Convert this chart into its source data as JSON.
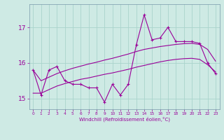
{
  "xlabel": "Windchill (Refroidissement éolien,°C)",
  "background_color": "#ceeae4",
  "grid_color": "#aad4cc",
  "line_color": "#990099",
  "x_ticks": [
    0,
    1,
    2,
    3,
    4,
    5,
    6,
    7,
    8,
    9,
    10,
    11,
    12,
    13,
    14,
    15,
    16,
    17,
    18,
    19,
    20,
    21,
    22,
    23
  ],
  "ylim": [
    14.7,
    17.65
  ],
  "yticks": [
    15,
    16,
    17
  ],
  "series_main": [
    15.8,
    15.1,
    15.8,
    15.9,
    15.5,
    15.4,
    15.4,
    15.3,
    15.3,
    14.9,
    15.4,
    15.1,
    15.4,
    16.5,
    17.35,
    16.65,
    16.7,
    17.0,
    16.6,
    16.6,
    16.6,
    16.55,
    16.0,
    15.7
  ],
  "series_smooth_low": [
    15.15,
    15.15,
    15.25,
    15.35,
    15.42,
    15.48,
    15.54,
    15.58,
    15.63,
    15.68,
    15.72,
    15.77,
    15.82,
    15.88,
    15.93,
    15.98,
    16.03,
    16.07,
    16.1,
    16.12,
    16.13,
    16.1,
    15.95,
    15.75
  ],
  "series_smooth_high": [
    15.8,
    15.5,
    15.6,
    15.7,
    15.78,
    15.85,
    15.91,
    15.97,
    16.02,
    16.08,
    16.13,
    16.19,
    16.25,
    16.32,
    16.38,
    16.42,
    16.46,
    16.49,
    16.52,
    16.54,
    16.55,
    16.52,
    16.38,
    16.05
  ]
}
